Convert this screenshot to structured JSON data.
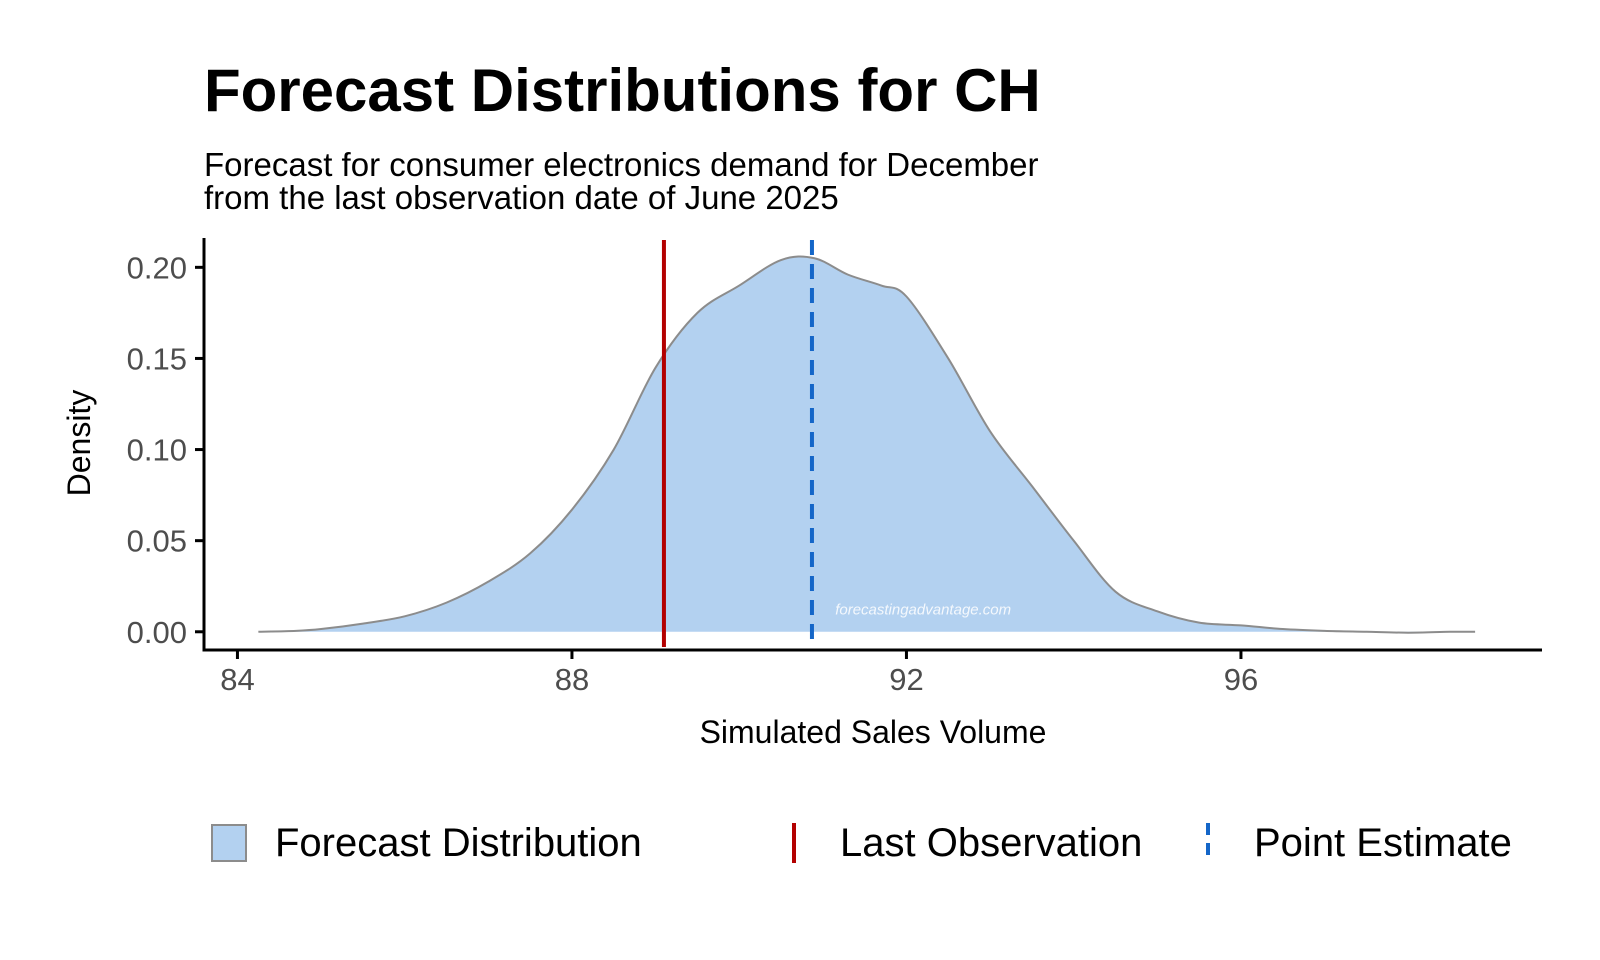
{
  "chart_data": {
    "type": "area",
    "title": "Forecast Distributions for CH",
    "subtitle_lines": [
      "Forecast for consumer electronics demand for December",
      "from the last observation date of June 2025"
    ],
    "xlabel": "Simulated Sales Volume",
    "ylabel": "Density",
    "xlim": [
      83.6,
      99.6
    ],
    "ylim": [
      -0.01,
      0.215
    ],
    "x_ticks": [
      84,
      88,
      92,
      96
    ],
    "x_tick_labels": [
      "84",
      "88",
      "92",
      "96"
    ],
    "y_ticks": [
      0,
      0.05,
      0.1,
      0.15,
      0.2
    ],
    "y_tick_labels": [
      "0.00",
      "0.05",
      "0.10",
      "0.15",
      "0.20"
    ],
    "grid": false,
    "legend_position": "bottom",
    "series": [
      {
        "name": "Forecast Distribution",
        "kind": "density",
        "x": [
          84.25,
          84.7,
          85.0,
          85.5,
          86.0,
          86.5,
          87.0,
          87.5,
          88.0,
          88.5,
          89.0,
          89.5,
          90.0,
          90.5,
          90.9,
          91.3,
          91.7,
          92.0,
          92.5,
          93.0,
          93.5,
          94.0,
          94.5,
          95.0,
          95.5,
          96.0,
          96.5,
          97.0,
          97.5,
          98.0,
          98.5,
          98.8
        ],
        "y": [
          0.0,
          0.0005,
          0.0015,
          0.0045,
          0.0085,
          0.016,
          0.0275,
          0.043,
          0.067,
          0.1,
          0.145,
          0.175,
          0.19,
          0.204,
          0.205,
          0.196,
          0.19,
          0.184,
          0.15,
          0.11,
          0.08,
          0.05,
          0.022,
          0.0112,
          0.005,
          0.0035,
          0.0015,
          0.0005,
          0.0,
          -0.0005,
          0.0,
          0.0
        ],
        "fill": "#b3d1f0",
        "stroke": "#8c8c8c"
      }
    ],
    "reference_lines": [
      {
        "name": "Last Observation",
        "x": 89.1,
        "color": "#b30000",
        "style": "solid"
      },
      {
        "name": "Point Estimate",
        "x": 90.87,
        "color": "#1466c8",
        "style": "dashed"
      }
    ],
    "watermark": "forecastingadvantage.com",
    "watermark_x": 92.2,
    "watermark_y": 0.0095
  }
}
